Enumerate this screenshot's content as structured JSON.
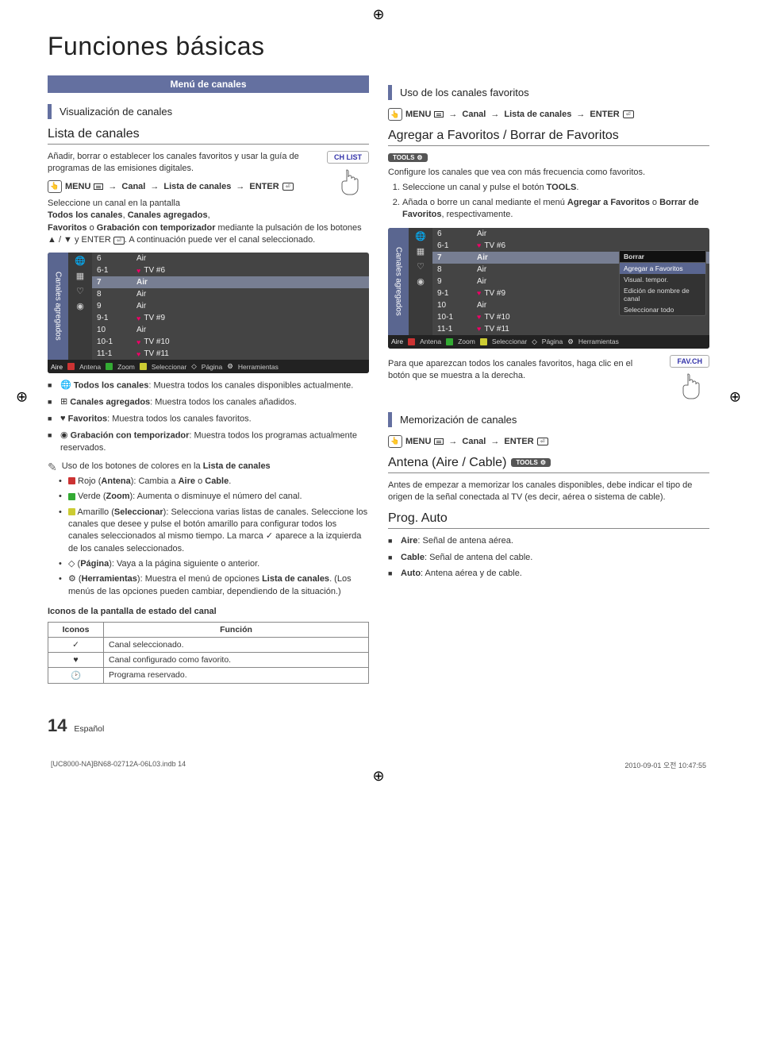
{
  "title": "Funciones básicas",
  "banner": "Menú de canales",
  "left": {
    "sec1": "Visualización de canales",
    "sub1": "Lista de canales",
    "intro": "Añadir, borrar o establecer los canales favoritos y usar la guía de programas de las emisiones digitales.",
    "chlist_btn": "CH LIST",
    "menu_path": {
      "menu": "MENU",
      "p1": "Canal",
      "p2": "Lista de canales",
      "enter": "ENTER"
    },
    "para1a": "Seleccione un canal en la pantalla",
    "para1b": "Todos los canales",
    "para1c": "Canales agregados",
    "para1d": "Favoritos",
    "para1e": "Grabación con temporizador",
    "para1f": " mediante la pulsación de los botones ▲ / ▼ y ENTER ",
    "para1g": ". A continuación puede ver el canal seleccionado.",
    "panel": {
      "side": "Canales agregados",
      "rows": [
        {
          "num": "6",
          "name": "Air",
          "fav": false
        },
        {
          "num": "6-1",
          "name": "TV #6",
          "fav": true
        },
        {
          "num": "7",
          "name": "Air",
          "fav": false,
          "hl": true
        },
        {
          "num": "8",
          "name": "Air",
          "fav": false
        },
        {
          "num": "9",
          "name": "Air",
          "fav": false
        },
        {
          "num": "9-1",
          "name": "TV #9",
          "fav": true
        },
        {
          "num": "10",
          "name": "Air",
          "fav": false
        },
        {
          "num": "10-1",
          "name": "TV #10",
          "fav": true
        },
        {
          "num": "11-1",
          "name": "TV #11",
          "fav": true
        }
      ],
      "foot_mode": "Aire",
      "foot": [
        {
          "color": "#c33",
          "label": "Antena"
        },
        {
          "color": "#3a3",
          "label": "Zoom"
        },
        {
          "color": "#cc3",
          "label": "Seleccionar"
        }
      ],
      "foot_extra": [
        {
          "sym": "◇",
          "label": "Página"
        },
        {
          "sym": "⚙",
          "label": "Herramientas"
        }
      ]
    },
    "bullets": [
      {
        "icon": "🌐",
        "b": "Todos los canales",
        "t": ": Muestra todos los canales disponibles actualmente."
      },
      {
        "icon": "⊞",
        "b": "Canales agregados",
        "t": ": Muestra todos los canales añadidos."
      },
      {
        "icon": "♥",
        "b": "Favoritos",
        "t": ": Muestra todos los canales favoritos."
      },
      {
        "icon": "◉",
        "b": "Grabación con temporizador",
        "t": ": Muestra todos los programas actualmente reservados."
      }
    ],
    "note": "Uso de los botones de colores en la ",
    "note_b": "Lista de canales",
    "color_notes": [
      {
        "sq": "#c33",
        "pre": "Rojo (",
        "b": "Antena",
        "post": "): Cambia a ",
        "b2": "Aire",
        "mid": " o ",
        "b3": "Cable",
        "end": "."
      },
      {
        "sq": "#3a3",
        "pre": "Verde (",
        "b": "Zoom",
        "post": "): Aumenta o disminuye el número del canal."
      },
      {
        "sq": "#cc3",
        "pre": "Amarillo (",
        "b": "Seleccionar",
        "post": "): Selecciona varias listas de canales. Seleccione los canales que desee y pulse el botón amarillo para configurar todos los canales seleccionados al mismo tiempo. La marca ✓ aparece a la izquierda de los canales seleccionados."
      },
      {
        "sym": "◇",
        "pre": "(",
        "b": "Página",
        "post": "): Vaya a la página siguiente o anterior."
      },
      {
        "sym": "⚙",
        "pre": "(",
        "b": "Herramientas",
        "post": "): Muestra el menú de opciones ",
        "b2": "Lista de canales",
        "end": ". (Los menús de las opciones pueden cambiar, dependiendo de la situación.)"
      }
    ],
    "icons_title": "Iconos de la pantalla de estado del canal",
    "icon_tbl": {
      "h1": "Iconos",
      "h2": "Función",
      "rows": [
        {
          "i": "✓",
          "t": "Canal seleccionado."
        },
        {
          "i": "♥",
          "t": "Canal configurado como favorito."
        },
        {
          "i": "🕑",
          "t": "Programa reservado."
        }
      ]
    }
  },
  "right": {
    "sec1": "Uso de los canales favoritos",
    "menu_path": {
      "menu": "MENU",
      "p1": "Canal",
      "p2": "Lista de canales",
      "enter": "ENTER"
    },
    "sub1": "Agregar a Favoritos / Borrar de Favoritos",
    "tools": "TOOLS",
    "intro": "Configure los canales que vea con más frecuencia como favoritos.",
    "steps": [
      {
        "pre": "Seleccione un canal y pulse el botón ",
        "b": "TOOLS",
        "post": "."
      },
      {
        "pre": "Añada o borre un canal mediante el menú ",
        "b": "Agregar a Favoritos",
        "mid": " o ",
        "b2": "Borrar de Favoritos",
        "post": ", respectivamente."
      }
    ],
    "panel": {
      "side": "Canales agregados",
      "rows": [
        {
          "num": "6",
          "name": "Air",
          "fav": false
        },
        {
          "num": "6-1",
          "name": "TV #6",
          "fav": true
        },
        {
          "num": "7",
          "name": "Air",
          "fav": false,
          "hl": true
        },
        {
          "num": "8",
          "name": "Air",
          "fav": false
        },
        {
          "num": "9",
          "name": "Air",
          "fav": false
        },
        {
          "num": "9-1",
          "name": "TV #9",
          "fav": true
        },
        {
          "num": "10",
          "name": "Air",
          "fav": false
        },
        {
          "num": "10-1",
          "name": "TV #10",
          "fav": true
        },
        {
          "num": "11-1",
          "name": "TV #11",
          "fav": true
        }
      ],
      "popup": {
        "head": "Borrar",
        "items": [
          "Agregar a Favoritos",
          "Visual. tempor.",
          "Edición de nombre de canal",
          "Seleccionar todo"
        ]
      },
      "foot_mode": "Aire",
      "foot": [
        {
          "color": "#c33",
          "label": "Antena"
        },
        {
          "color": "#3a3",
          "label": "Zoom"
        },
        {
          "color": "#cc3",
          "label": "Seleccionar"
        }
      ],
      "foot_extra": [
        {
          "sym": "◇",
          "label": "Página"
        },
        {
          "sym": "⚙",
          "label": "Herramientas"
        }
      ]
    },
    "fav_text": "Para que aparezcan todos los canales favoritos, haga clic en el botón que se muestra a la derecha.",
    "fav_btn": "FAV.CH",
    "sec2": "Memorización de canales",
    "menu_path2": {
      "menu": "MENU",
      "p1": "Canal",
      "enter": "ENTER"
    },
    "sub2": "Antena (Aire / Cable)",
    "antena_text": "Antes de empezar a memorizar los canales disponibles, debe indicar el tipo de origen de la señal conectada al TV (es decir, aérea o sistema de cable).",
    "sub3": "Prog. Auto",
    "prog_list": [
      {
        "b": "Aire",
        "t": ": Señal de antena aérea."
      },
      {
        "b": "Cable",
        "t": ": Señal de antena del cable."
      },
      {
        "b": "Auto",
        "t": ": Antena aérea y de cable."
      }
    ]
  },
  "footer": {
    "num": "14",
    "lang": "Español"
  },
  "print": {
    "left": "[UC8000-NA]BN68-02712A-06L03.indb   14",
    "right": "2010-09-01   오전 10:47:55"
  },
  "colors": {
    "accent": "#6470a0",
    "panel_bg": "#444",
    "panel_hl": "#777e92",
    "heart": "#e06"
  }
}
